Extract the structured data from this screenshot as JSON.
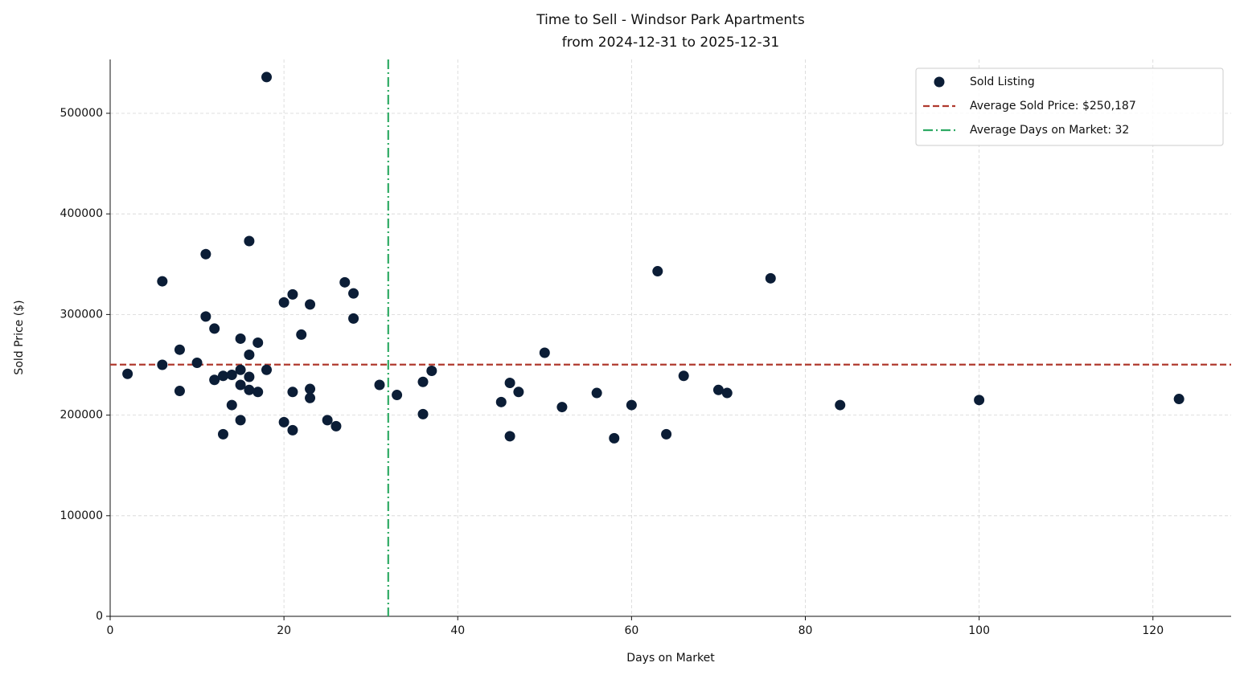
{
  "chart_data": {
    "type": "scatter",
    "title": "Time to Sell - Windsor Park Apartments",
    "subtitle": "from 2024-12-31 to 2025-12-31",
    "x_label": "Days on Market",
    "y_label": "Sold Price ($)",
    "xlim": [
      0,
      129
    ],
    "xticks": [
      0,
      20,
      40,
      60,
      80,
      100,
      120
    ],
    "ylim": [
      0,
      553500
    ],
    "yticks": [
      0,
      100000,
      200000,
      300000,
      400000,
      500000
    ],
    "grid": true,
    "legend": "upper right",
    "series": [
      {
        "name": "Sold Listing",
        "color": "#0b1d36",
        "x": [
          2,
          6,
          6,
          8,
          8,
          10,
          11,
          11,
          12,
          12,
          13,
          13,
          14,
          14,
          15,
          15,
          15,
          15,
          16,
          16,
          16,
          16,
          17,
          17,
          18,
          18,
          20,
          20,
          21,
          21,
          21,
          22,
          23,
          23,
          23,
          25,
          26,
          27,
          28,
          28,
          31,
          33,
          36,
          36,
          37,
          45,
          46,
          46,
          47,
          50,
          52,
          56,
          58,
          60,
          63,
          64,
          66,
          70,
          71,
          76,
          84,
          100,
          123
        ],
        "values": [
          241000,
          333000,
          250000,
          265000,
          224000,
          252000,
          360000,
          298000,
          286000,
          235000,
          239000,
          181000,
          240000,
          210000,
          276000,
          245000,
          230000,
          195000,
          373000,
          260000,
          238000,
          225000,
          272000,
          223000,
          536000,
          245000,
          312000,
          193000,
          320000,
          223000,
          185000,
          280000,
          310000,
          226000,
          217000,
          195000,
          189000,
          332000,
          321000,
          296000,
          230000,
          220000,
          233000,
          201000,
          244000,
          213000,
          232000,
          179000,
          223000,
          262000,
          208000,
          222000,
          177000,
          210000,
          343000,
          181000,
          239000,
          225000,
          222000,
          336000,
          210000,
          215000,
          216000
        ]
      }
    ],
    "hline": {
      "value": 250187,
      "label": "Average Sold Price: $250,187",
      "color": "#b03a2e"
    },
    "vline": {
      "value": 32,
      "label": "Average Days on Market: 32",
      "color": "#2eaa63"
    }
  }
}
